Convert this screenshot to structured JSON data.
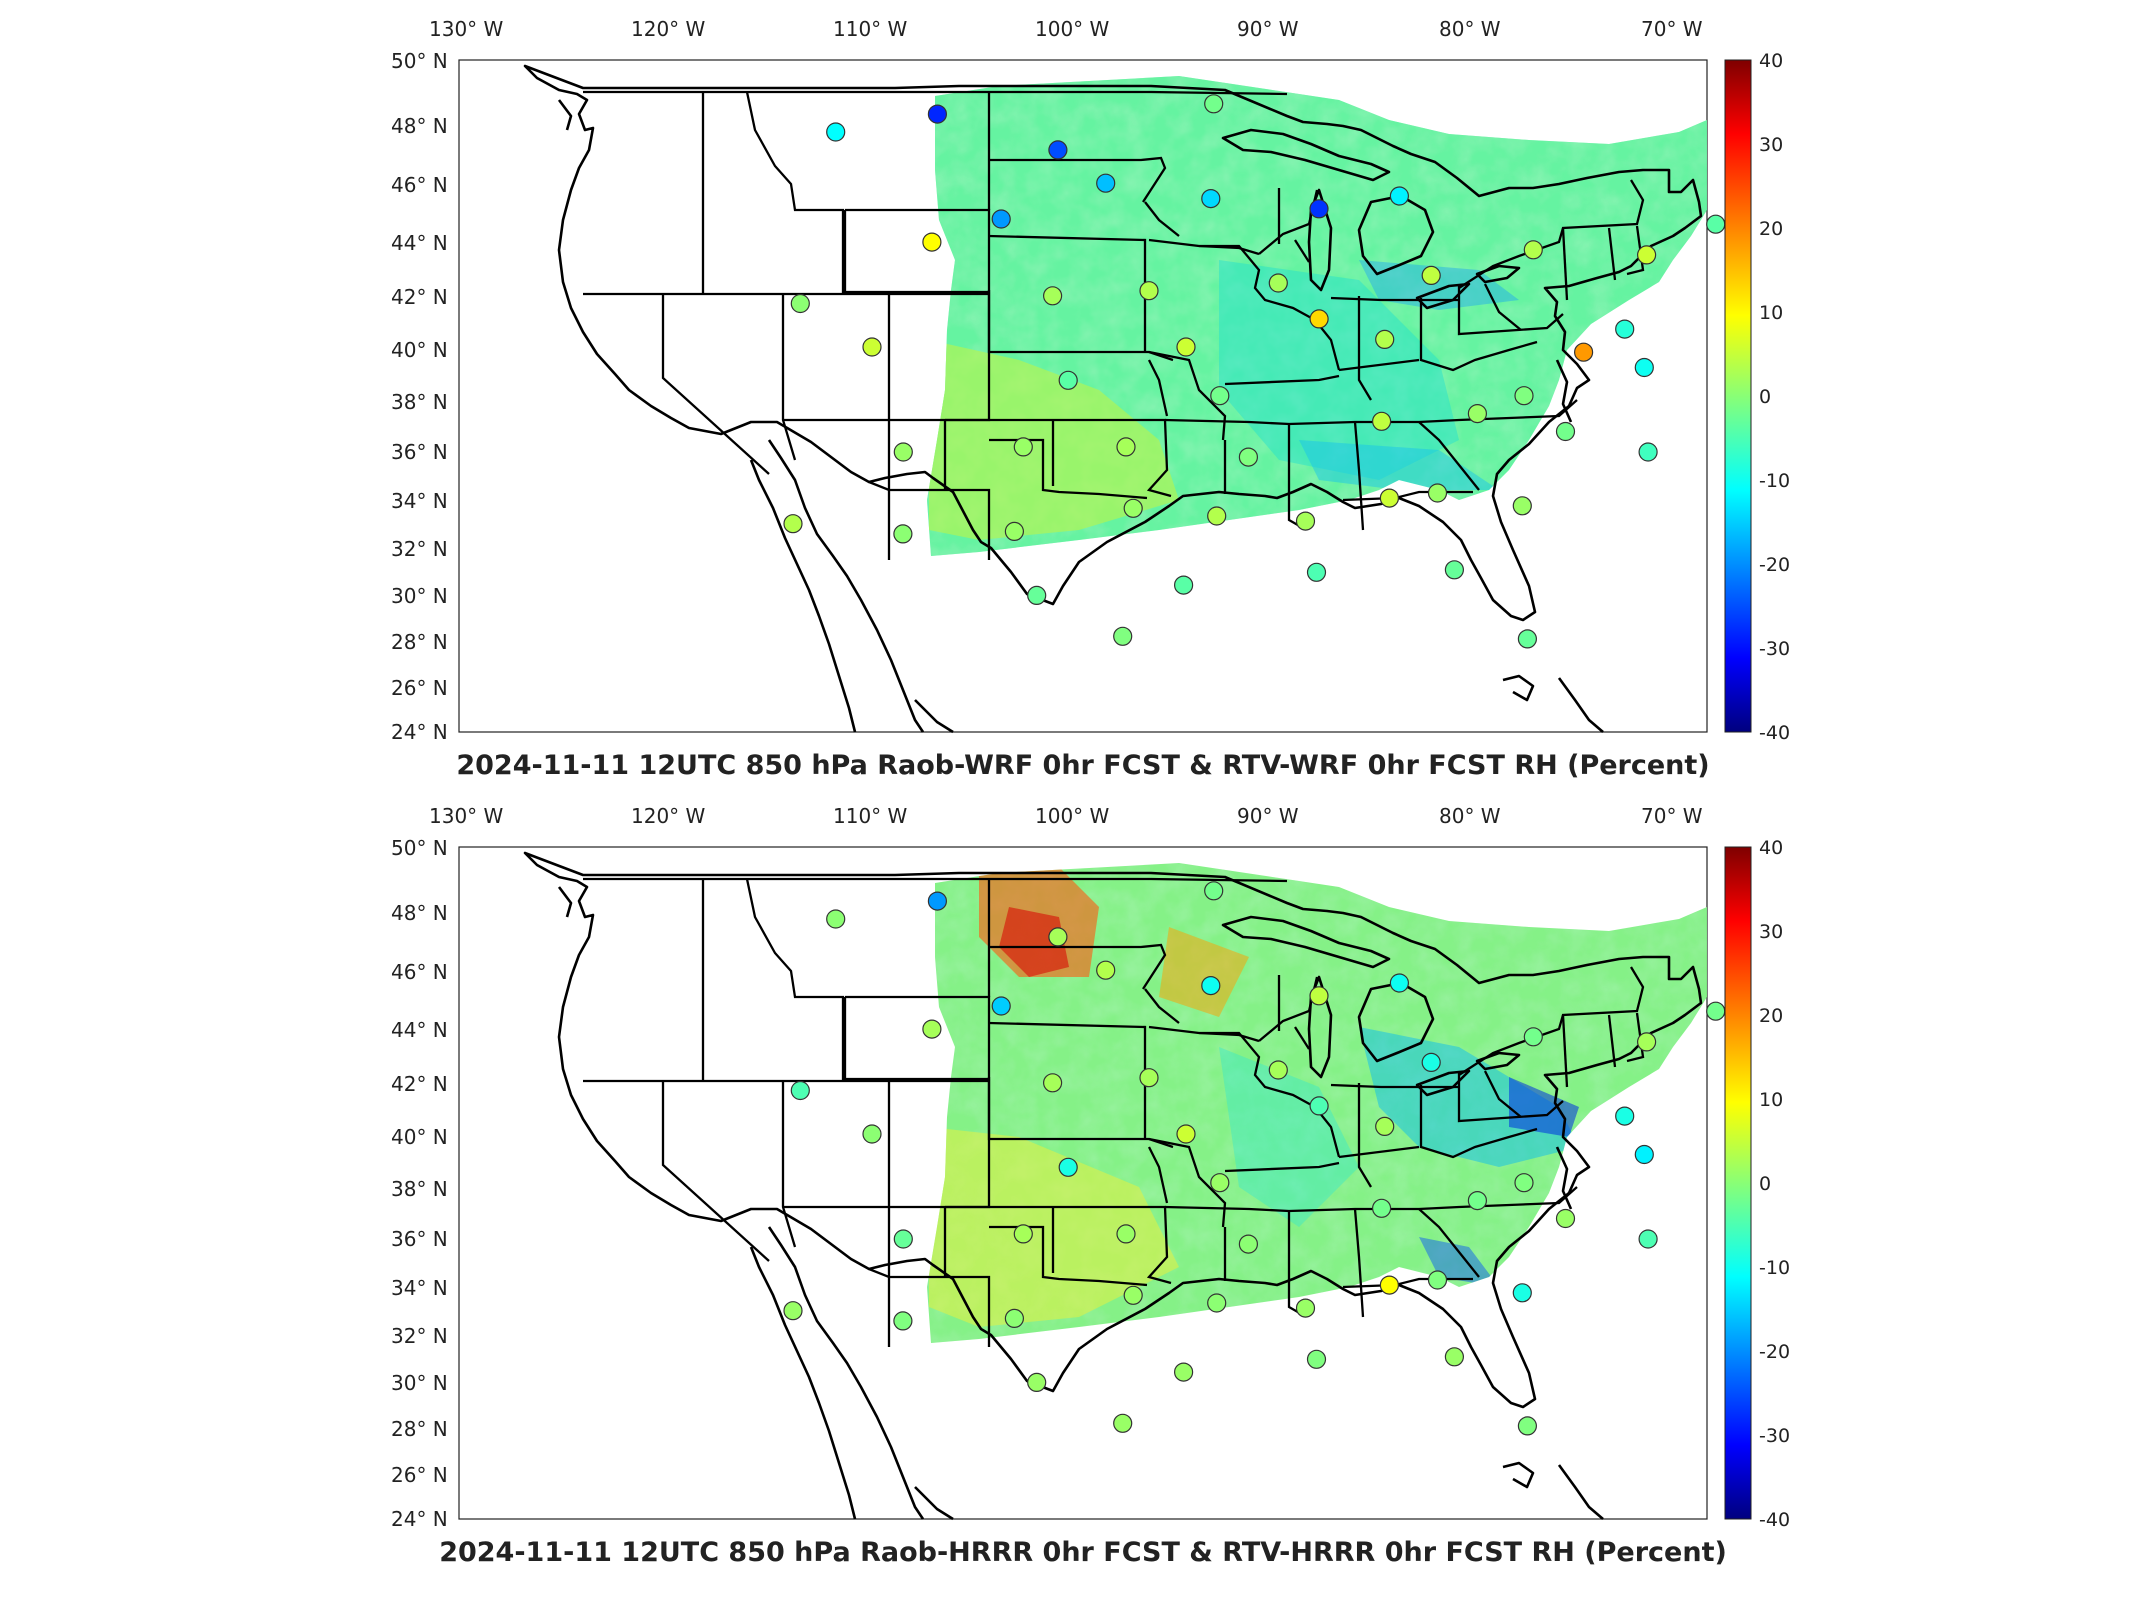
{
  "panels": [
    {
      "id": "wrf",
      "title": "2024-11-11 12UTC 850 hPa Raob-WRF 0hr FCST & RTV-WRF 0hr FCST RH (Percent)",
      "x_ticks": [
        "130° W",
        "120° W",
        "110° W",
        "100° W",
        "90° W",
        "80° W",
        "70° W"
      ],
      "y_ticks": [
        "50° N",
        "48° N",
        "46° N",
        "44° N",
        "42° N",
        "40° N",
        "38° N",
        "36° N",
        "34° N",
        "32° N",
        "30° N",
        "28° N",
        "26° N",
        "24° N"
      ],
      "colorbar_ticks": [
        "40",
        "30",
        "20",
        "10",
        "0",
        "-10",
        "-20",
        "-30",
        "-40"
      ],
      "stations": [
        {
          "lon": -111.4,
          "lat": 47.5,
          "v": -10
        },
        {
          "lon": -106.6,
          "lat": 48.2,
          "v": -27
        },
        {
          "lon": -100.7,
          "lat": 46.8,
          "v": -24
        },
        {
          "lon": -98.4,
          "lat": 45.5,
          "v": -15
        },
        {
          "lon": -93.5,
          "lat": 44.9,
          "v": -13
        },
        {
          "lon": -88.5,
          "lat": 44.5,
          "v": -26
        },
        {
          "lon": -84.7,
          "lat": 45.0,
          "v": -11
        },
        {
          "lon": -103.2,
          "lat": 44.1,
          "v": -18
        },
        {
          "lon": -106.3,
          "lat": 43.2,
          "v": 10
        },
        {
          "lon": -93.2,
          "lat": 48.6,
          "v": -1
        },
        {
          "lon": -111.9,
          "lat": 40.8,
          "v": 1
        },
        {
          "lon": -108.5,
          "lat": 39.1,
          "v": 6
        },
        {
          "lon": -100.7,
          "lat": 41.1,
          "v": 3
        },
        {
          "lon": -96.4,
          "lat": 41.3,
          "v": 4
        },
        {
          "lon": -90.6,
          "lat": 41.6,
          "v": 3
        },
        {
          "lon": -88.9,
          "lat": 40.2,
          "v": 13
        },
        {
          "lon": -86.1,
          "lat": 39.4,
          "v": 4
        },
        {
          "lon": -83.7,
          "lat": 41.9,
          "v": 5
        },
        {
          "lon": -78.9,
          "lat": 42.9,
          "v": 4
        },
        {
          "lon": -73.8,
          "lat": 42.7,
          "v": 6
        },
        {
          "lon": -77.5,
          "lat": 38.9,
          "v": 18
        },
        {
          "lon": -75.5,
          "lat": 39.8,
          "v": -7
        },
        {
          "lon": -75.0,
          "lat": 38.3,
          "v": -9
        },
        {
          "lon": -99.9,
          "lat": 37.8,
          "v": -3
        },
        {
          "lon": -94.8,
          "lat": 39.1,
          "v": 6
        },
        {
          "lon": -93.4,
          "lat": 37.2,
          "v": -1
        },
        {
          "lon": -86.6,
          "lat": 36.2,
          "v": 5
        },
        {
          "lon": -82.5,
          "lat": 36.5,
          "v": 2
        },
        {
          "lon": -80.4,
          "lat": 37.2,
          "v": 0
        },
        {
          "lon": -78.9,
          "lat": 35.8,
          "v": -1
        },
        {
          "lon": -75.6,
          "lat": 35.0,
          "v": -5
        },
        {
          "lon": -92.3,
          "lat": 34.8,
          "v": 0
        },
        {
          "lon": -97.4,
          "lat": 35.2,
          "v": 3
        },
        {
          "lon": -101.7,
          "lat": 35.2,
          "v": 2
        },
        {
          "lon": -106.7,
          "lat": 35.0,
          "v": 2
        },
        {
          "lon": -110.9,
          "lat": 32.2,
          "v": 4
        },
        {
          "lon": -106.4,
          "lat": 31.8,
          "v": 1
        },
        {
          "lon": -101.9,
          "lat": 31.9,
          "v": 2
        },
        {
          "lon": -97.1,
          "lat": 32.8,
          "v": 2
        },
        {
          "lon": -93.7,
          "lat": 32.5,
          "v": 4
        },
        {
          "lon": -90.1,
          "lat": 32.3,
          "v": 3
        },
        {
          "lon": -86.6,
          "lat": 33.2,
          "v": 6
        },
        {
          "lon": -84.6,
          "lat": 33.4,
          "v": 2
        },
        {
          "lon": -81.2,
          "lat": 32.9,
          "v": 2
        },
        {
          "lon": -100.9,
          "lat": 29.4,
          "v": -2
        },
        {
          "lon": -95.1,
          "lat": 29.8,
          "v": -3
        },
        {
          "lon": -89.8,
          "lat": 30.3,
          "v": -4
        },
        {
          "lon": -84.3,
          "lat": 30.4,
          "v": -2
        },
        {
          "lon": -97.5,
          "lat": 27.8,
          "v": 0
        },
        {
          "lon": -81.8,
          "lat": 27.7,
          "v": -2
        },
        {
          "lon": -70.3,
          "lat": 43.9,
          "v": -3
        }
      ]
    },
    {
      "id": "hrrr",
      "title": "2024-11-11 12UTC 850 hPa Raob-HRRR 0hr FCST & RTV-HRRR 0hr FCST RH (Percent)",
      "x_ticks": [
        "130° W",
        "120° W",
        "110° W",
        "100° W",
        "90° W",
        "80° W",
        "70° W"
      ],
      "y_ticks": [
        "50° N",
        "48° N",
        "46° N",
        "44° N",
        "42° N",
        "40° N",
        "38° N",
        "36° N",
        "34° N",
        "32° N",
        "30° N",
        "28° N",
        "26° N",
        "24° N"
      ],
      "colorbar_ticks": [
        "40",
        "30",
        "20",
        "10",
        "0",
        "-10",
        "-20",
        "-30",
        "-40"
      ],
      "stations": [
        {
          "lon": -111.4,
          "lat": 47.5,
          "v": 1
        },
        {
          "lon": -106.6,
          "lat": 48.2,
          "v": -18
        },
        {
          "lon": -100.7,
          "lat": 46.8,
          "v": 3
        },
        {
          "lon": -98.4,
          "lat": 45.5,
          "v": 4
        },
        {
          "lon": -93.5,
          "lat": 44.9,
          "v": -9
        },
        {
          "lon": -88.5,
          "lat": 44.5,
          "v": 5
        },
        {
          "lon": -84.7,
          "lat": 45.0,
          "v": -9
        },
        {
          "lon": -103.2,
          "lat": 44.1,
          "v": -14
        },
        {
          "lon": -106.3,
          "lat": 43.2,
          "v": 3
        },
        {
          "lon": -93.2,
          "lat": 48.6,
          "v": -1
        },
        {
          "lon": -111.9,
          "lat": 40.8,
          "v": -4
        },
        {
          "lon": -108.5,
          "lat": 39.1,
          "v": 1
        },
        {
          "lon": -100.7,
          "lat": 41.1,
          "v": 3
        },
        {
          "lon": -96.4,
          "lat": 41.3,
          "v": 3
        },
        {
          "lon": -90.6,
          "lat": 41.6,
          "v": 3
        },
        {
          "lon": -88.9,
          "lat": 40.2,
          "v": -4
        },
        {
          "lon": -86.1,
          "lat": 39.4,
          "v": 3
        },
        {
          "lon": -83.7,
          "lat": 41.9,
          "v": -8
        },
        {
          "lon": -78.9,
          "lat": 42.9,
          "v": -1
        },
        {
          "lon": -73.8,
          "lat": 42.7,
          "v": 3
        },
        {
          "lon": -75.5,
          "lat": 39.8,
          "v": -8
        },
        {
          "lon": -75.0,
          "lat": 38.3,
          "v": -11
        },
        {
          "lon": -99.9,
          "lat": 37.8,
          "v": -8
        },
        {
          "lon": -94.8,
          "lat": 39.1,
          "v": 6
        },
        {
          "lon": -93.4,
          "lat": 37.2,
          "v": 2
        },
        {
          "lon": -86.6,
          "lat": 36.2,
          "v": -1
        },
        {
          "lon": -82.5,
          "lat": 36.5,
          "v": -1
        },
        {
          "lon": -80.4,
          "lat": 37.2,
          "v": 0
        },
        {
          "lon": -78.9,
          "lat": 35.8,
          "v": 2
        },
        {
          "lon": -75.6,
          "lat": 35.0,
          "v": -4
        },
        {
          "lon": -92.3,
          "lat": 34.8,
          "v": 1
        },
        {
          "lon": -97.4,
          "lat": 35.2,
          "v": 2
        },
        {
          "lon": -101.7,
          "lat": 35.2,
          "v": 3
        },
        {
          "lon": -106.7,
          "lat": 35.0,
          "v": -2
        },
        {
          "lon": -110.9,
          "lat": 32.2,
          "v": 2
        },
        {
          "lon": -106.4,
          "lat": 31.8,
          "v": 0
        },
        {
          "lon": -101.9,
          "lat": 31.9,
          "v": 1
        },
        {
          "lon": -97.1,
          "lat": 32.8,
          "v": 2
        },
        {
          "lon": -93.7,
          "lat": 32.5,
          "v": 1
        },
        {
          "lon": -90.1,
          "lat": 32.3,
          "v": 2
        },
        {
          "lon": -86.6,
          "lat": 33.2,
          "v": 10
        },
        {
          "lon": -84.6,
          "lat": 33.4,
          "v": 0
        },
        {
          "lon": -81.2,
          "lat": 32.9,
          "v": -8
        },
        {
          "lon": -100.9,
          "lat": 29.4,
          "v": 2
        },
        {
          "lon": -95.1,
          "lat": 29.8,
          "v": 2
        },
        {
          "lon": -89.8,
          "lat": 30.3,
          "v": 0
        },
        {
          "lon": -84.3,
          "lat": 30.4,
          "v": 2
        },
        {
          "lon": -97.5,
          "lat": 27.8,
          "v": 2
        },
        {
          "lon": -81.8,
          "lat": 27.7,
          "v": 0
        },
        {
          "lon": -70.3,
          "lat": 43.9,
          "v": -1
        }
      ]
    }
  ]
}
